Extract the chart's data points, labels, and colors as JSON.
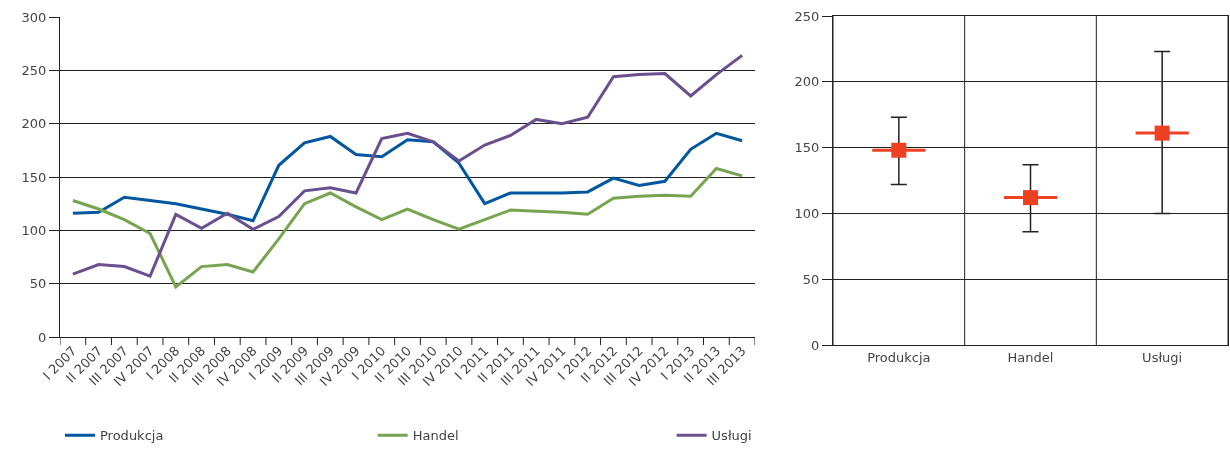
{
  "chart_data": [
    {
      "type": "line",
      "categories": [
        "I 2007",
        "II 2007",
        "III 2007",
        "IV 2007",
        "I 2008",
        "II 2008",
        "III 2008",
        "IV 2008",
        "I 2009",
        "II 2009",
        "III 2009",
        "IV 2009",
        "I 2010",
        "II 2010",
        "III 2010",
        "IV 2010",
        "I 2011",
        "II 2011",
        "III 2011",
        "IV 2011",
        "I 2012",
        "II 2012",
        "III 2012",
        "IV 2012",
        "I 2013",
        "II 2013",
        "III 2013"
      ],
      "series": [
        {
          "name": "Produkcja",
          "color": "#0057a0",
          "values": [
            116,
            117,
            131,
            128,
            125,
            120,
            115,
            109,
            161,
            182,
            188,
            171,
            169,
            185,
            183,
            163,
            125,
            135,
            135,
            135,
            136,
            149,
            142,
            146,
            176,
            191,
            184
          ]
        },
        {
          "name": "Handel",
          "color": "#77a450",
          "values": [
            128,
            120,
            110,
            97,
            47,
            66,
            68,
            61,
            92,
            125,
            135,
            122,
            110,
            120,
            110,
            101,
            110,
            119,
            118,
            117,
            115,
            130,
            132,
            133,
            132,
            158,
            151
          ]
        },
        {
          "name": "Usługi",
          "color": "#6a4f8f",
          "values": [
            59,
            68,
            66,
            57,
            115,
            102,
            116,
            101,
            113,
            137,
            140,
            135,
            186,
            191,
            183,
            165,
            180,
            189,
            204,
            200,
            206,
            244,
            246,
            247,
            226,
            246,
            264
          ]
        }
      ],
      "ylim": [
        0,
        300
      ],
      "yticks": [
        0,
        50,
        100,
        150,
        200,
        250,
        300
      ],
      "grid": "y",
      "legend": "bottom",
      "marker": "none",
      "line_style": "solid"
    },
    {
      "type": "scatter",
      "categories": [
        "Produkcja",
        "Handel",
        "Usługi"
      ],
      "values": [
        148,
        112,
        161
      ],
      "errors": [
        [
          122,
          173
        ],
        [
          86,
          137
        ],
        [
          100,
          223
        ]
      ],
      "color": "#ee4123",
      "marker": "square",
      "ylim": [
        0,
        250
      ],
      "yticks": [
        0,
        50,
        100,
        150,
        200,
        250
      ],
      "grid": true
    }
  ]
}
